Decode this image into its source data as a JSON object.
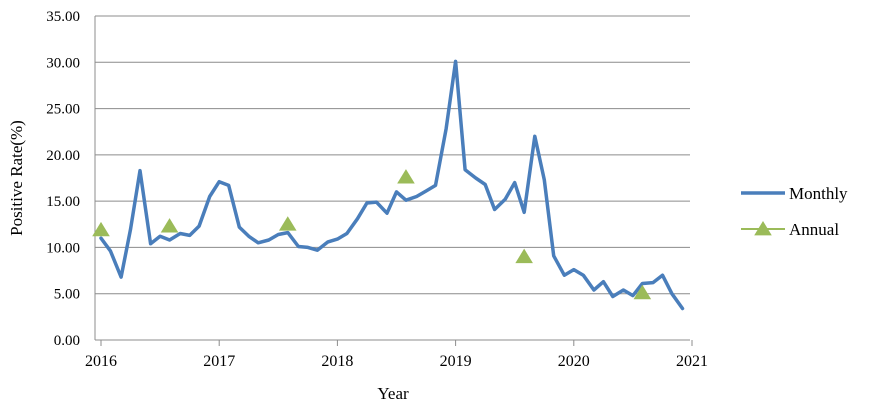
{
  "chart_data": {
    "type": "line",
    "xlabel": "Year",
    "ylabel": "Positive Rate(%)",
    "ylim": [
      0,
      35
    ],
    "yticks": [
      "0.00",
      "5.00",
      "10.00",
      "15.00",
      "20.00",
      "25.00",
      "30.00",
      "35.00"
    ],
    "xticks": [
      {
        "label": "2016",
        "x": 2016.0
      },
      {
        "label": "2017",
        "x": 2017.0
      },
      {
        "label": "2018",
        "x": 2018.0
      },
      {
        "label": "2019",
        "x": 2019.0
      },
      {
        "label": "2020",
        "x": 2020.0
      },
      {
        "label": "2021",
        "x": 2021.0
      }
    ],
    "xlim": [
      2016.0,
      2021.5
    ],
    "grid": true,
    "legend_position": "right",
    "series": [
      {
        "name": "Monthly",
        "color": "#4a7ebb",
        "marker": "none",
        "points": [
          [
            2016.0,
            11.0
          ],
          [
            2016.08,
            9.6
          ],
          [
            2016.17,
            6.8
          ],
          [
            2016.25,
            12.0
          ],
          [
            2016.33,
            18.3
          ],
          [
            2016.42,
            10.4
          ],
          [
            2016.5,
            11.2
          ],
          [
            2016.58,
            10.8
          ],
          [
            2016.67,
            11.5
          ],
          [
            2016.75,
            11.3
          ],
          [
            2016.83,
            12.3
          ],
          [
            2016.92,
            15.5
          ],
          [
            2017.0,
            17.1
          ],
          [
            2017.08,
            16.7
          ],
          [
            2017.17,
            12.2
          ],
          [
            2017.25,
            11.2
          ],
          [
            2017.33,
            10.5
          ],
          [
            2017.42,
            10.8
          ],
          [
            2017.5,
            11.4
          ],
          [
            2017.58,
            11.6
          ],
          [
            2017.67,
            10.1
          ],
          [
            2017.75,
            10.0
          ],
          [
            2017.83,
            9.7
          ],
          [
            2017.92,
            10.6
          ],
          [
            2018.0,
            10.9
          ],
          [
            2018.08,
            11.5
          ],
          [
            2018.17,
            13.1
          ],
          [
            2018.25,
            14.8
          ],
          [
            2018.33,
            14.9
          ],
          [
            2018.42,
            13.7
          ],
          [
            2018.5,
            16.0
          ],
          [
            2018.58,
            15.1
          ],
          [
            2018.67,
            15.5
          ],
          [
            2018.75,
            16.1
          ],
          [
            2018.83,
            16.7
          ],
          [
            2018.92,
            22.8
          ],
          [
            2019.0,
            30.1
          ],
          [
            2019.08,
            18.4
          ],
          [
            2019.17,
            17.5
          ],
          [
            2019.25,
            16.8
          ],
          [
            2019.33,
            14.1
          ],
          [
            2019.42,
            15.2
          ],
          [
            2019.5,
            17.0
          ],
          [
            2019.58,
            13.8
          ],
          [
            2019.67,
            22.0
          ],
          [
            2019.75,
            17.3
          ],
          [
            2019.83,
            9.1
          ],
          [
            2019.92,
            7.0
          ],
          [
            2020.0,
            7.6
          ],
          [
            2020.08,
            7.0
          ],
          [
            2020.17,
            5.4
          ],
          [
            2020.25,
            6.3
          ],
          [
            2020.33,
            4.7
          ],
          [
            2020.42,
            5.4
          ],
          [
            2020.5,
            4.8
          ],
          [
            2020.58,
            6.1
          ],
          [
            2020.67,
            6.2
          ],
          [
            2020.75,
            7.0
          ],
          [
            2020.83,
            5.0
          ],
          [
            2020.92,
            3.4
          ]
        ]
      },
      {
        "name": "Annual",
        "color": "#9bbb59",
        "marker": "triangle",
        "points": [
          [
            2016.0,
            11.9
          ],
          [
            2016.58,
            12.3
          ],
          [
            2017.58,
            12.5
          ],
          [
            2018.58,
            17.6
          ],
          [
            2019.58,
            9.0
          ],
          [
            2020.58,
            5.1
          ]
        ]
      }
    ]
  }
}
